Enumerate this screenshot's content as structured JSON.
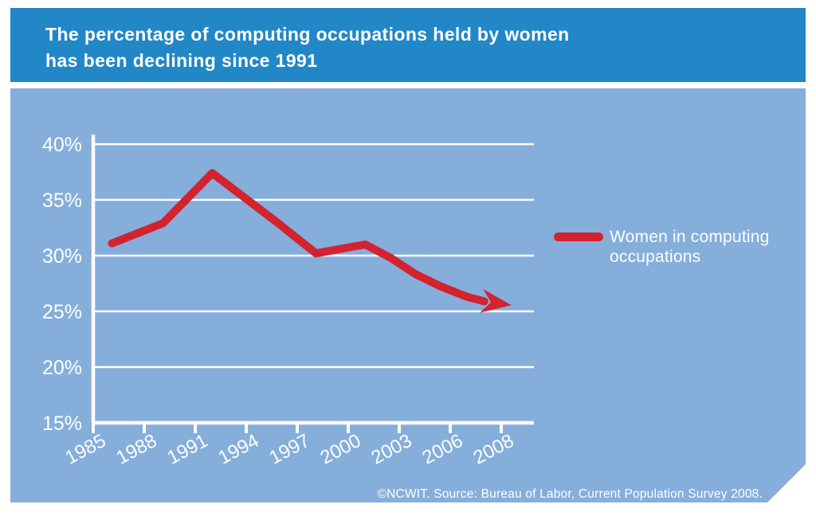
{
  "header": {
    "title_line1": "The percentage of computing occupations held by women",
    "title_line2": "has been declining since 1991"
  },
  "legend": {
    "line1": "Women in computing",
    "line2": "occupations"
  },
  "source": "©NCWIT. Source: Bureau of Labor, Current Population Survey 2008.",
  "colors": {
    "header_bg": "#2287c7",
    "panel_bg": "#85aedb",
    "line": "#d2232f",
    "axis": "#ffffff",
    "text": "#ffffff"
  },
  "chart_data": {
    "type": "line",
    "title": "The percentage of computing occupations held by women has been declining since 1991",
    "xlabel": "",
    "ylabel": "",
    "x_base": 1985,
    "ylim": [
      15,
      40
    ],
    "grid": true,
    "legend_position": "right",
    "x_ticks": [
      "1985",
      "1988",
      "1991",
      "1994",
      "1997",
      "2000",
      "2003",
      "2006",
      "2008"
    ],
    "y_ticks": [
      {
        "label": "40%",
        "value": 40
      },
      {
        "label": "35%",
        "value": 35
      },
      {
        "label": "30%",
        "value": 30
      },
      {
        "label": "25%",
        "value": 25
      },
      {
        "label": "20%",
        "value": 20
      },
      {
        "label": "15%",
        "value": 15
      }
    ],
    "series": [
      {
        "name": "Women in computing occupations",
        "points": [
          {
            "year": 1985,
            "value": 31
          },
          {
            "year": 1988,
            "value": 33
          },
          {
            "year": 1991,
            "value": 36
          },
          {
            "year": 1992,
            "value": 37.3
          },
          {
            "year": 1994,
            "value": 35
          },
          {
            "year": 1997,
            "value": 31.5
          },
          {
            "year": 2000,
            "value": 30.5
          },
          {
            "year": 2001,
            "value": 31
          },
          {
            "year": 2003,
            "value": 29.3
          },
          {
            "year": 2006,
            "value": 27
          },
          {
            "year": 2008,
            "value": 25.8
          }
        ],
        "drawn_path": [
          [
            1986.1,
            31.1
          ],
          [
            1989.1,
            32.9
          ],
          [
            1992.0,
            37.4
          ],
          [
            1995.8,
            33.0
          ],
          [
            1998.1,
            30.2
          ],
          [
            2001.0,
            31.0
          ],
          [
            2002.5,
            29.8
          ],
          [
            2004.0,
            28.3
          ],
          [
            2005.5,
            27.2
          ],
          [
            2007.0,
            26.3
          ],
          [
            2008.0,
            25.9
          ]
        ],
        "arrow_tip": [
          2009.6,
          25.55
        ]
      }
    ]
  }
}
